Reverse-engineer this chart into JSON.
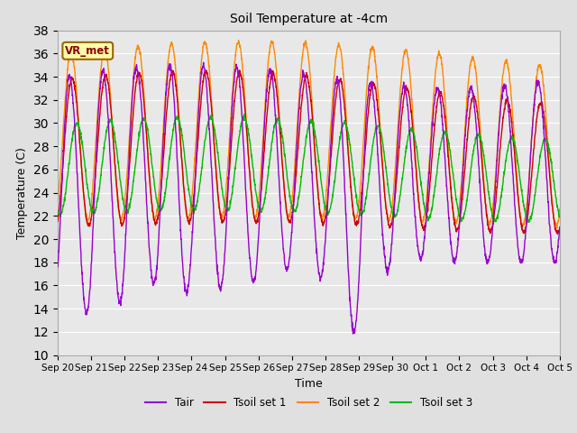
{
  "title": "Soil Temperature at -4cm",
  "xlabel": "Time",
  "ylabel": "Temperature (C)",
  "ylim": [
    10,
    38
  ],
  "yticks": [
    10,
    12,
    14,
    16,
    18,
    20,
    22,
    24,
    26,
    28,
    30,
    32,
    34,
    36,
    38
  ],
  "bg_color": "#e0e0e0",
  "plot_bg_color": "#e8e8e8",
  "grid_color": "#ffffff",
  "series_colors": {
    "Tair": "#9900cc",
    "Tsoil_set1": "#cc0000",
    "Tsoil_set2": "#ff8800",
    "Tsoil_set3": "#00bb00"
  },
  "legend_labels": [
    "Tair",
    "Tsoil set 1",
    "Tsoil set 2",
    "Tsoil set 3"
  ],
  "annotation_text": "VR_met",
  "annotation_fg": "#8b0000",
  "annotation_bg": "#ffffaa",
  "annotation_edge": "#996600",
  "n_days": 15,
  "points_per_day": 144
}
